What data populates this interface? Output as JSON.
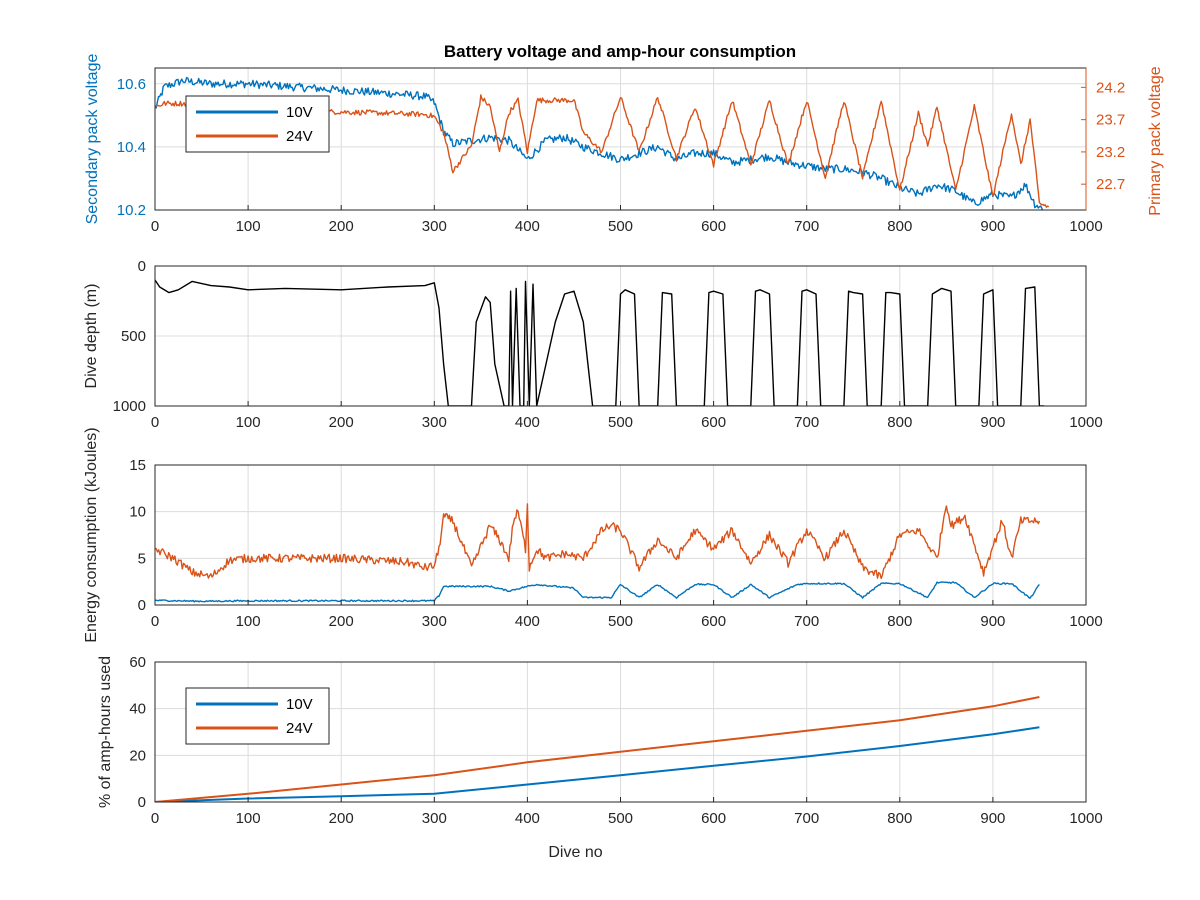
{
  "figure": {
    "title": "Battery voltage and amp-hour consumption",
    "colors": {
      "v10": "#0072bd",
      "v24": "#d95319",
      "depth": "#000000",
      "grid": "#dcdcdc"
    }
  },
  "chart_data": [
    {
      "id": "voltage",
      "type": "line",
      "title": "Battery voltage and amp-hour consumption",
      "xlabel": "",
      "ylabel": "Secondary pack voltage",
      "ylabel_right": "Primary pack voltage",
      "xlim": [
        0,
        1000
      ],
      "ylim": [
        10.2,
        10.65
      ],
      "ylim_right": [
        22.3,
        24.5
      ],
      "xticks": [
        0,
        100,
        200,
        300,
        400,
        500,
        600,
        700,
        800,
        900,
        1000
      ],
      "yticks": [
        10.2,
        10.4,
        10.6
      ],
      "yticks_right": [
        22.7,
        23.2,
        23.7,
        24.2
      ],
      "grid": true,
      "legend": {
        "position": "top-left",
        "entries": [
          "10V",
          "24V"
        ]
      },
      "series": [
        {
          "name": "10V",
          "axis": "left",
          "x": [
            0,
            10,
            30,
            60,
            100,
            150,
            200,
            250,
            290,
            300,
            310,
            320,
            340,
            360,
            380,
            400,
            420,
            440,
            460,
            480,
            500,
            520,
            540,
            560,
            580,
            600,
            620,
            640,
            660,
            680,
            700,
            720,
            740,
            760,
            780,
            800,
            820,
            840,
            860,
            880,
            900,
            920,
            935,
            945,
            955
          ],
          "y": [
            10.52,
            10.59,
            10.61,
            10.6,
            10.6,
            10.59,
            10.58,
            10.57,
            10.56,
            10.54,
            10.45,
            10.41,
            10.42,
            10.43,
            10.42,
            10.36,
            10.42,
            10.43,
            10.4,
            10.38,
            10.36,
            10.38,
            10.4,
            10.36,
            10.38,
            10.38,
            10.35,
            10.36,
            10.37,
            10.35,
            10.34,
            10.33,
            10.33,
            10.32,
            10.3,
            10.27,
            10.25,
            10.28,
            10.26,
            10.22,
            10.25,
            10.24,
            10.28,
            10.22,
            10.2
          ],
          "noise": 0.013
        },
        {
          "name": "24V",
          "axis": "right",
          "x": [
            0,
            10,
            30,
            60,
            100,
            150,
            200,
            250,
            290,
            300,
            310,
            320,
            330,
            340,
            350,
            360,
            370,
            380,
            390,
            400,
            410,
            420,
            440,
            450,
            460,
            480,
            500,
            520,
            540,
            560,
            580,
            600,
            620,
            640,
            660,
            680,
            700,
            720,
            740,
            760,
            780,
            800,
            820,
            830,
            840,
            860,
            880,
            900,
            920,
            930,
            940,
            950,
            960
          ],
          "y": [
            23.9,
            23.95,
            23.95,
            23.9,
            23.85,
            23.83,
            23.82,
            23.8,
            23.78,
            23.75,
            23.5,
            22.9,
            23.1,
            23.3,
            24.05,
            23.9,
            23.2,
            23.8,
            24.0,
            23.2,
            24.0,
            24.0,
            24.0,
            24.0,
            23.5,
            23.2,
            24.05,
            23.2,
            24.05,
            23.1,
            23.9,
            23.0,
            24.0,
            23.0,
            24.0,
            23.0,
            24.0,
            22.8,
            24.0,
            22.8,
            24.0,
            22.6,
            23.8,
            23.3,
            23.9,
            22.6,
            23.9,
            22.5,
            23.8,
            23.0,
            23.7,
            22.4,
            22.35
          ],
          "noise": 0.04
        }
      ]
    },
    {
      "id": "depth",
      "type": "line",
      "title": "",
      "xlabel": "",
      "ylabel": "Dive depth (m)",
      "xlim": [
        0,
        1000
      ],
      "ylim": [
        0,
        1000
      ],
      "y_reversed": true,
      "xticks": [
        0,
        100,
        200,
        300,
        400,
        500,
        600,
        700,
        800,
        900,
        1000
      ],
      "yticks": [
        0,
        500,
        1000
      ],
      "grid": true,
      "series": [
        {
          "name": "",
          "axis": "left",
          "x": [
            0,
            5,
            15,
            25,
            40,
            60,
            80,
            100,
            140,
            200,
            250,
            290,
            300,
            305,
            310,
            315,
            330,
            340,
            345,
            355,
            360,
            365,
            375,
            380,
            382,
            384,
            388,
            392,
            396,
            398,
            402,
            406,
            410,
            420,
            430,
            440,
            450,
            460,
            465,
            470,
            495,
            500,
            505,
            515,
            520,
            540,
            545,
            555,
            560,
            590,
            595,
            600,
            610,
            615,
            640,
            645,
            650,
            660,
            665,
            690,
            695,
            700,
            710,
            715,
            740,
            745,
            750,
            760,
            765,
            780,
            785,
            790,
            800,
            805,
            830,
            835,
            845,
            855,
            860,
            885,
            890,
            900,
            905,
            930,
            935,
            945,
            950,
            955
          ],
          "y": [
            100,
            150,
            190,
            170,
            110,
            140,
            150,
            170,
            160,
            170,
            150,
            140,
            120,
            300,
            700,
            1000,
            1000,
            1000,
            400,
            220,
            260,
            700,
            1000,
            1000,
            180,
            1000,
            160,
            1000,
            1000,
            110,
            1000,
            130,
            1000,
            700,
            400,
            200,
            180,
            400,
            700,
            1000,
            1000,
            200,
            170,
            200,
            1000,
            1000,
            190,
            200,
            1000,
            1000,
            190,
            180,
            200,
            1000,
            1000,
            180,
            170,
            200,
            1000,
            1000,
            180,
            170,
            200,
            1000,
            1000,
            180,
            190,
            200,
            1000,
            1000,
            190,
            190,
            200,
            1000,
            1000,
            200,
            160,
            180,
            1000,
            1000,
            200,
            170,
            1000,
            1000,
            160,
            150,
            1000,
            1000
          ],
          "noise": 0
        }
      ]
    },
    {
      "id": "energy",
      "type": "line",
      "title": "",
      "xlabel": "",
      "ylabel": "Energy consumption (kJoules)",
      "xlim": [
        0,
        1000
      ],
      "ylim": [
        0,
        15
      ],
      "xticks": [
        0,
        100,
        200,
        300,
        400,
        500,
        600,
        700,
        800,
        900,
        1000
      ],
      "yticks": [
        0,
        5,
        10,
        15
      ],
      "grid": true,
      "series": [
        {
          "name": "10V",
          "axis": "left",
          "x": [
            0,
            50,
            100,
            200,
            300,
            305,
            310,
            360,
            380,
            400,
            410,
            450,
            460,
            490,
            500,
            520,
            540,
            560,
            580,
            600,
            620,
            640,
            660,
            690,
            700,
            740,
            760,
            780,
            800,
            830,
            840,
            860,
            880,
            900,
            920,
            940,
            950
          ],
          "y": [
            0.5,
            0.4,
            0.45,
            0.45,
            0.45,
            1.0,
            2.0,
            2.0,
            1.5,
            2.0,
            2.2,
            1.8,
            0.8,
            0.8,
            2.2,
            0.8,
            2.2,
            0.8,
            2.2,
            2.2,
            0.8,
            2.2,
            0.8,
            2.2,
            2.3,
            2.3,
            0.8,
            2.3,
            2.3,
            0.8,
            2.4,
            2.4,
            0.8,
            2.3,
            2.3,
            0.7,
            2.2
          ],
          "noise": 0.08
        },
        {
          "name": "24V",
          "axis": "left",
          "x": [
            0,
            20,
            40,
            60,
            80,
            100,
            200,
            270,
            290,
            300,
            305,
            310,
            320,
            340,
            360,
            370,
            380,
            385,
            390,
            398,
            400,
            402,
            410,
            420,
            440,
            460,
            480,
            490,
            500,
            520,
            540,
            560,
            580,
            600,
            620,
            640,
            660,
            680,
            700,
            720,
            740,
            760,
            780,
            800,
            820,
            840,
            850,
            855,
            870,
            890,
            910,
            920,
            930,
            945,
            950
          ],
          "y": [
            6.0,
            5.0,
            3.5,
            3.0,
            4.8,
            5.0,
            5.0,
            4.6,
            4.0,
            4.2,
            6.0,
            9.5,
            9.0,
            4.0,
            8.5,
            7.0,
            5.0,
            9.0,
            10.0,
            6.0,
            11.0,
            4.0,
            6.0,
            5.0,
            5.5,
            5.0,
            8.0,
            8.5,
            8.0,
            4.0,
            7.0,
            5.0,
            8.0,
            6.0,
            8.0,
            4.5,
            7.5,
            4.5,
            8.0,
            5.0,
            8.0,
            4.0,
            3.0,
            7.5,
            8.0,
            5.0,
            11.0,
            8.5,
            9.5,
            3.5,
            9.0,
            5.0,
            9.0,
            9.0,
            9.0
          ],
          "noise": 0.45
        }
      ]
    },
    {
      "id": "amphours",
      "type": "line",
      "title": "",
      "xlabel": "Dive no",
      "ylabel": "% of amp-hours used",
      "xlim": [
        0,
        1000
      ],
      "ylim": [
        0,
        60
      ],
      "xticks": [
        0,
        100,
        200,
        300,
        400,
        500,
        600,
        700,
        800,
        900,
        1000
      ],
      "yticks": [
        0,
        20,
        40,
        60
      ],
      "grid": true,
      "legend": {
        "position": "top-left",
        "entries": [
          "10V",
          "24V"
        ]
      },
      "series": [
        {
          "name": "10V",
          "axis": "left",
          "x": [
            0,
            100,
            200,
            300,
            400,
            500,
            600,
            700,
            800,
            900,
            950
          ],
          "y": [
            0,
            1.5,
            2.5,
            3.5,
            7.5,
            11.5,
            15.5,
            19.5,
            24,
            29,
            32
          ],
          "noise": 0
        },
        {
          "name": "24V",
          "axis": "left",
          "x": [
            0,
            100,
            200,
            300,
            400,
            500,
            600,
            700,
            800,
            900,
            950
          ],
          "y": [
            0,
            3.5,
            7.5,
            11.5,
            17,
            21.5,
            26,
            30.5,
            35,
            41,
            45
          ],
          "noise": 0
        }
      ]
    }
  ]
}
